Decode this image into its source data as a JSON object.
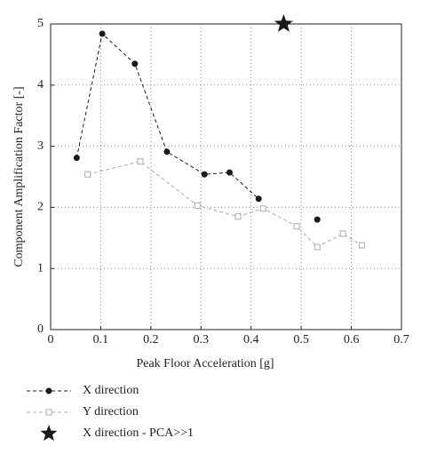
{
  "chart_data": {
    "type": "line",
    "xlabel": "Peak Floor Acceleration [g]",
    "ylabel": "Component Amplification Factor [-]",
    "xlim": [
      0,
      0.7
    ],
    "ylim": [
      0,
      5
    ],
    "xticks": [
      0,
      0.1,
      0.2,
      0.3,
      0.4,
      0.5,
      0.6,
      0.7
    ],
    "yticks": [
      0,
      1,
      2,
      3,
      4,
      5
    ],
    "grid": true,
    "legend": "below",
    "series": [
      {
        "name": "X direction",
        "color": "#1a1a1a",
        "marker": "circle",
        "dashed": true,
        "x": [
          0.052,
          0.103,
          0.168,
          0.232,
          0.307,
          0.357,
          0.415,
          null,
          0.532
        ],
        "values": [
          2.81,
          4.84,
          4.35,
          2.91,
          2.54,
          2.57,
          2.14,
          null,
          1.8
        ]
      },
      {
        "name": "Y direction",
        "color": "#aaaaaa",
        "marker": "square",
        "dashed": true,
        "x": [
          0.074,
          0.179,
          0.293,
          0.374,
          0.424,
          0.491,
          0.532,
          0.583,
          0.621
        ],
        "values": [
          2.54,
          2.75,
          2.03,
          1.85,
          1.98,
          1.69,
          1.35,
          1.57,
          1.38
        ]
      },
      {
        "name": "X direction - PCA>>1",
        "color": "#1a1a1a",
        "marker": "star",
        "dashed": false,
        "x": [
          0.465
        ],
        "values": [
          5.0
        ]
      }
    ]
  }
}
